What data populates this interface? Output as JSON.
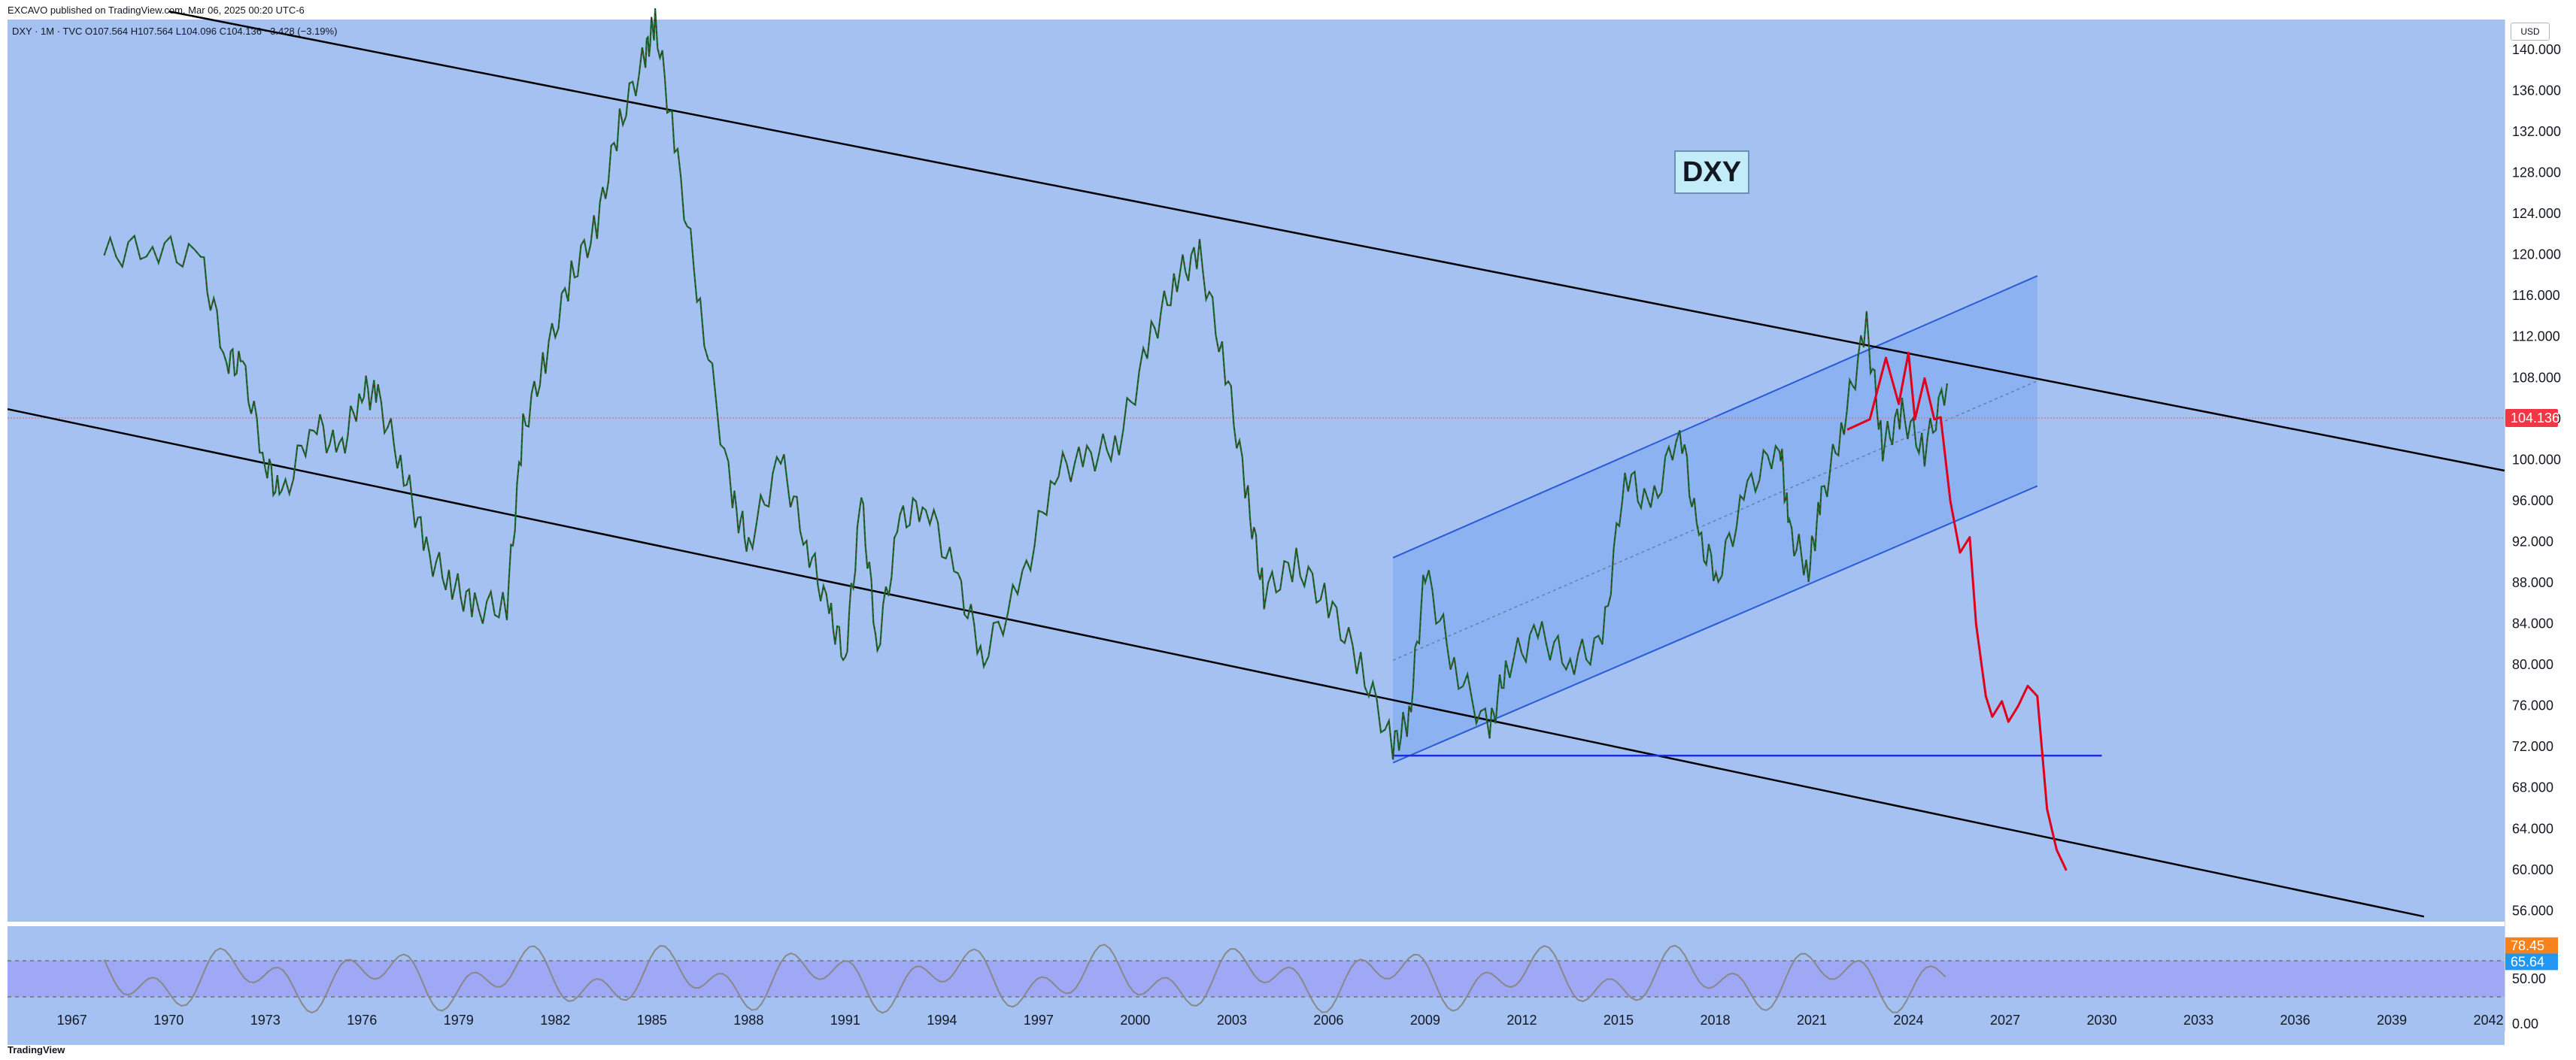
{
  "published": "EXCAVO published on TradingView.com, Mar 06, 2025 00:20 UTC-6",
  "symbol_info": "DXY · 1M · TVC  O107.564  H107.564  L104.096  C104.136  −3.428 (−3.19%)",
  "currency": "USD",
  "annotation": "DXY",
  "footer": "TradingView",
  "colors": {
    "background": "#a4c1f2",
    "rsi_band": "#9ea3f5",
    "channel_fill": "#7da9f0",
    "projection": "#e0001b",
    "support_line": "#1c2fd6",
    "price_badge": "#f23645",
    "rsi_badge_high": "#f7821b",
    "rsi_badge_low": "#2196f3"
  },
  "chart_data": {
    "type": "line",
    "title": "",
    "x_ticks": [
      "1967",
      "1970",
      "1973",
      "1976",
      "1979",
      "1982",
      "1985",
      "1988",
      "1991",
      "1994",
      "1997",
      "2000",
      "2003",
      "2006",
      "2009",
      "2012",
      "2015",
      "2018",
      "2021",
      "2024",
      "2027",
      "2030",
      "2033",
      "2036",
      "2039",
      "2042"
    ],
    "y_ticks": [
      "140.000",
      "136.000",
      "132.000",
      "128.000",
      "124.000",
      "120.000",
      "116.000",
      "112.000",
      "108.000",
      "104.000",
      "100.000",
      "96.000",
      "92.000",
      "88.000",
      "84.000",
      "80.000",
      "76.000",
      "72.000",
      "68.000",
      "64.000",
      "60.000",
      "56.000"
    ],
    "ylim": [
      55,
      143
    ],
    "xlim": [
      1965.0,
      2042.5
    ],
    "last_price": "104.136",
    "series": [
      {
        "type": "candlestick-approx",
        "x": [
          1968.0,
          1969.5,
          1971.0,
          1971.8,
          1972.3,
          1973.0,
          1973.5,
          1974.5,
          1975.3,
          1976.0,
          1976.5,
          1977.3,
          1978.0,
          1978.8,
          1979.5,
          1980.5,
          1981.0,
          1981.7,
          1982.5,
          1983.3,
          1984.0,
          1984.8,
          1985.1,
          1985.7,
          1986.5,
          1987.5,
          1988.0,
          1989.0,
          1989.8,
          1990.5,
          1991.0,
          1991.5,
          1992.0,
          1992.7,
          1993.5,
          1994.5,
          1995.3,
          1996.5,
          1997.5,
          1998.5,
          1999.5,
          2000.5,
          2001.3,
          2002.0,
          2002.8,
          2003.5,
          2004.0,
          2005.0,
          2006.0,
          2007.0,
          2008.0,
          2008.5,
          2009.0,
          2009.9,
          2011.0,
          2011.5,
          2012.5,
          2013.5,
          2014.5,
          2015.2,
          2016.0,
          2016.9,
          2017.5,
          2018.1,
          2019.0,
          2020.0,
          2020.3,
          2020.9,
          2021.3,
          2022.0,
          2022.7,
          2023.2,
          2023.8,
          2024.5,
          2025.2
        ],
        "values": [
          120.0,
          121.0,
          119.5,
          110.0,
          109.0,
          100.0,
          96.0,
          104.0,
          100.5,
          107.0,
          106.0,
          99.0,
          91.0,
          88.0,
          85.5,
          86.0,
          103.0,
          110.0,
          118.0,
          123.0,
          133.0,
          139.5,
          143.0,
          131.0,
          115.0,
          96.0,
          92.0,
          100.0,
          92.0,
          85.0,
          81.0,
          96.0,
          82.0,
          94.0,
          96.0,
          88.0,
          81.0,
          88.0,
          99.0,
          100.0,
          102.0,
          112.0,
          118.0,
          120.0,
          109.0,
          96.0,
          87.0,
          90.0,
          86.0,
          80.0,
          72.0,
          75.0,
          89.0,
          80.0,
          73.5,
          80.0,
          83.0,
          80.5,
          82.0,
          99.0,
          95.0,
          103.5,
          92.0,
          89.0,
          97.0,
          102.0,
          93.0,
          89.5,
          96.0,
          104.0,
          113.0,
          101.5,
          104.5,
          101.0,
          107.5
        ]
      },
      {
        "name": "",
        "type": "projection",
        "x": [
          2022.1,
          2022.8,
          2023.3,
          2023.7,
          2024.0,
          2024.2,
          2024.5,
          2024.8,
          2025.0,
          2025.3,
          2025.6,
          2025.9,
          2026.1,
          2026.4,
          2026.6,
          2026.9,
          2027.1,
          2027.4,
          2027.7,
          2028.0,
          2028.3,
          2028.6,
          2028.9
        ],
        "values": [
          103.0,
          104.0,
          110.0,
          105.5,
          110.5,
          104.0,
          108.0,
          104.0,
          104.2,
          96.0,
          91.0,
          92.5,
          84.0,
          77.0,
          75.0,
          76.5,
          74.5,
          76.0,
          78.0,
          77.0,
          66.0,
          62.0,
          60.0
        ]
      }
    ],
    "rsi": {
      "label_high": "78.45",
      "label_low": "65.64",
      "y_ticks": [
        "50.00",
        "0.00"
      ]
    }
  }
}
